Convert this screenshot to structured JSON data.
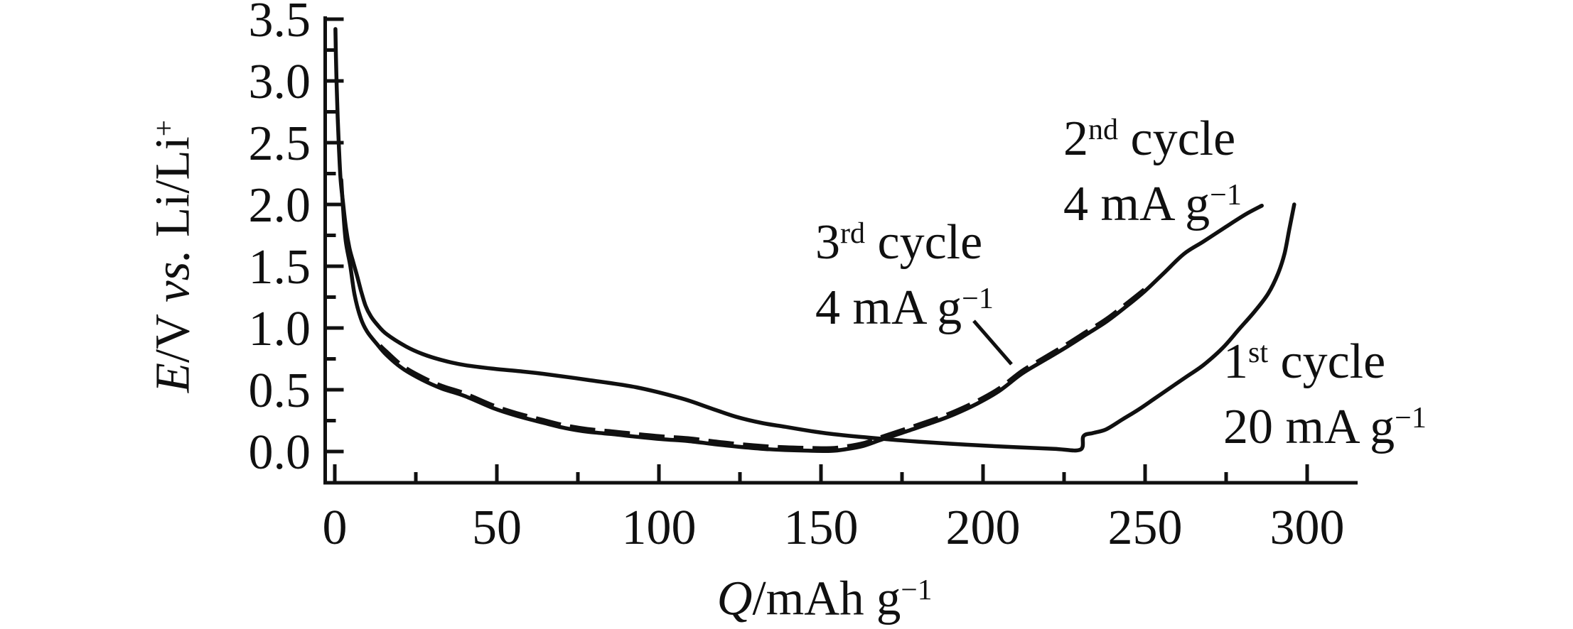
{
  "figure": {
    "background": "#ffffff",
    "ink": "#101010"
  },
  "y_axis": {
    "label_runs": {
      "e": "E",
      "slash_v": "/V ",
      "vs": "vs.",
      "li": " Li/Li",
      "sup": "+"
    },
    "tick_labels": [
      "3.5",
      "3.0",
      "2.5",
      "2.0",
      "1.5",
      "1.0",
      "0.5",
      "0.0"
    ]
  },
  "x_axis": {
    "label_runs": {
      "q": "Q",
      "unit": "/mAh g",
      "sup": "−1"
    },
    "tick_labels": [
      "0",
      "50",
      "100",
      "150",
      "200",
      "250",
      "300"
    ]
  },
  "annotations": {
    "second": {
      "num": "2",
      "ord": "nd",
      "cycle": " cycle",
      "rate": "4 mA g",
      "rate_sup": "−1"
    },
    "third": {
      "num": "3",
      "ord": "rd",
      "cycle": " cycle",
      "rate": "4 mA g",
      "rate_sup": "−1"
    },
    "first": {
      "num": "1",
      "ord": "st",
      "cycle": " cycle",
      "rate": "20 mA g",
      "rate_sup": "−1"
    }
  },
  "chart_data": {
    "type": "line",
    "title": "",
    "xlabel": "Q/mAh g−1",
    "ylabel": "E/V vs. Li/Li+",
    "xlim": [
      0,
      300
    ],
    "ylim": [
      0,
      3.5
    ],
    "grid": false,
    "legend_position": "inline-annotations",
    "x_major_ticks": [
      0,
      50,
      100,
      150,
      200,
      250,
      300
    ],
    "x_minor_step": 25,
    "y_major_ticks": [
      0.0,
      0.5,
      1.0,
      1.5,
      2.0,
      2.5,
      3.0,
      3.5
    ],
    "y_minor_step": 0.25,
    "series": [
      {
        "name": "1st cycle",
        "rate": "20 mA g−1",
        "style": "solid",
        "points": [
          [
            0.2,
            3.42
          ],
          [
            0.35,
            3.2
          ],
          [
            0.6,
            2.95
          ],
          [
            0.9,
            2.7
          ],
          [
            1.3,
            2.45
          ],
          [
            1.8,
            2.2
          ],
          [
            2.6,
            2.0
          ],
          [
            3.5,
            1.8
          ],
          [
            4.5,
            1.65
          ],
          [
            5.5,
            1.55
          ],
          [
            6.8,
            1.43
          ],
          [
            8.1,
            1.3
          ],
          [
            9.5,
            1.18
          ],
          [
            11,
            1.1
          ],
          [
            13,
            1.03
          ],
          [
            16,
            0.95
          ],
          [
            22,
            0.85
          ],
          [
            27,
            0.79
          ],
          [
            33,
            0.74
          ],
          [
            40,
            0.7
          ],
          [
            49,
            0.67
          ],
          [
            57,
            0.65
          ],
          [
            64,
            0.63
          ],
          [
            78,
            0.58
          ],
          [
            93,
            0.52
          ],
          [
            107,
            0.43
          ],
          [
            116,
            0.35
          ],
          [
            124,
            0.28
          ],
          [
            132,
            0.23
          ],
          [
            139,
            0.2
          ],
          [
            147,
            0.165
          ],
          [
            154,
            0.14
          ],
          [
            168,
            0.105
          ],
          [
            180,
            0.08
          ],
          [
            195,
            0.055
          ],
          [
            210,
            0.035
          ],
          [
            222,
            0.022
          ],
          [
            230,
            0.015
          ],
          [
            231,
            0.125
          ],
          [
            234,
            0.15
          ],
          [
            238,
            0.18
          ],
          [
            243,
            0.26
          ],
          [
            248,
            0.34
          ],
          [
            253,
            0.43
          ],
          [
            258,
            0.52
          ],
          [
            263,
            0.61
          ],
          [
            268,
            0.7
          ],
          [
            274,
            0.84
          ],
          [
            279,
            0.99
          ],
          [
            284,
            1.14
          ],
          [
            288,
            1.28
          ],
          [
            291,
            1.44
          ],
          [
            293,
            1.6
          ],
          [
            294.5,
            1.8
          ],
          [
            296,
            2.0
          ]
        ]
      },
      {
        "name": "2nd cycle",
        "rate": "4 mA g−1",
        "style": "solid",
        "points": [
          [
            2,
            2.2
          ],
          [
            2.6,
            1.95
          ],
          [
            3.4,
            1.7
          ],
          [
            4.8,
            1.5
          ],
          [
            6.1,
            1.27
          ],
          [
            8,
            1.08
          ],
          [
            10,
            0.97
          ],
          [
            13,
            0.87
          ],
          [
            16,
            0.78
          ],
          [
            21,
            0.67
          ],
          [
            27,
            0.58
          ],
          [
            33,
            0.51
          ],
          [
            40,
            0.45
          ],
          [
            49,
            0.35
          ],
          [
            56,
            0.29
          ],
          [
            64,
            0.235
          ],
          [
            71,
            0.19
          ],
          [
            78,
            0.16
          ],
          [
            86,
            0.14
          ],
          [
            93,
            0.12
          ],
          [
            101,
            0.1
          ],
          [
            109,
            0.085
          ],
          [
            117,
            0.06
          ],
          [
            124,
            0.04
          ],
          [
            132,
            0.022
          ],
          [
            139,
            0.012
          ],
          [
            146,
            0.007
          ],
          [
            153,
            0.005
          ],
          [
            158,
            0.02
          ],
          [
            163,
            0.045
          ],
          [
            168,
            0.09
          ],
          [
            172,
            0.125
          ],
          [
            176,
            0.16
          ],
          [
            185,
            0.24
          ],
          [
            191,
            0.3
          ],
          [
            198,
            0.385
          ],
          [
            205,
            0.49
          ],
          [
            212,
            0.63
          ],
          [
            219,
            0.74
          ],
          [
            226,
            0.85
          ],
          [
            232,
            0.95
          ],
          [
            238,
            1.05
          ],
          [
            244,
            1.17
          ],
          [
            250,
            1.3
          ],
          [
            256,
            1.45
          ],
          [
            262,
            1.6
          ],
          [
            268,
            1.7
          ],
          [
            275,
            1.82
          ],
          [
            281,
            1.92
          ],
          [
            286,
            1.99
          ]
        ]
      },
      {
        "name": "3rd cycle",
        "rate": "4 mA g−1",
        "style": "dashed",
        "points": [
          [
            14,
            0.84
          ],
          [
            16,
            0.79
          ],
          [
            21,
            0.675
          ],
          [
            27,
            0.585
          ],
          [
            33,
            0.515
          ],
          [
            40,
            0.455
          ],
          [
            49,
            0.355
          ],
          [
            56,
            0.295
          ],
          [
            64,
            0.24
          ],
          [
            71,
            0.195
          ],
          [
            78,
            0.165
          ],
          [
            86,
            0.145
          ],
          [
            93,
            0.125
          ],
          [
            101,
            0.105
          ],
          [
            109,
            0.09
          ],
          [
            117,
            0.065
          ],
          [
            124,
            0.045
          ],
          [
            132,
            0.027
          ],
          [
            139,
            0.017
          ],
          [
            146,
            0.012
          ],
          [
            153,
            0.01
          ],
          [
            158,
            0.025
          ],
          [
            163,
            0.05
          ],
          [
            168,
            0.095
          ],
          [
            172,
            0.13
          ],
          [
            176,
            0.165
          ],
          [
            185,
            0.245
          ],
          [
            191,
            0.305
          ],
          [
            198,
            0.39
          ],
          [
            205,
            0.495
          ],
          [
            212,
            0.635
          ],
          [
            219,
            0.745
          ],
          [
            226,
            0.855
          ],
          [
            232,
            0.955
          ],
          [
            238,
            1.055
          ],
          [
            244,
            1.175
          ],
          [
            250,
            1.3
          ]
        ]
      }
    ]
  }
}
